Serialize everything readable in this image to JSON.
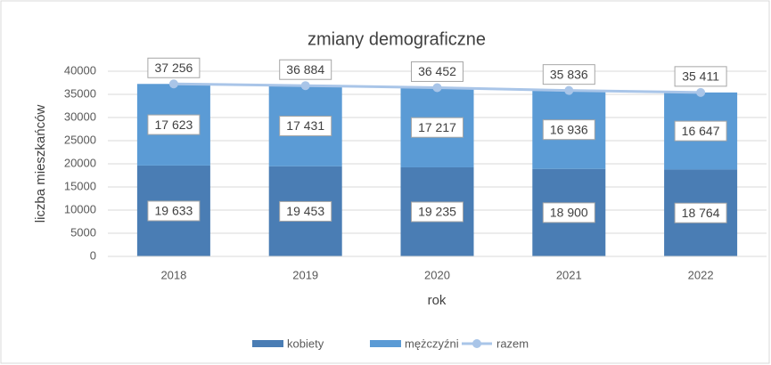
{
  "chart_data": {
    "type": "bar",
    "stacked": true,
    "title": "zmiany demograficzne",
    "x_label": "rok",
    "y_label": "liczba mieszkańców",
    "categories": [
      "2018",
      "2019",
      "2020",
      "2021",
      "2022"
    ],
    "series": [
      {
        "name": "kobiety",
        "color": "#4a7db4",
        "values": [
          19633,
          19453,
          19235,
          18900,
          18764
        ],
        "value_labels": [
          "19 633",
          "19 453",
          "19 235",
          "18 900",
          "18 764"
        ]
      },
      {
        "name": "mężczyźni",
        "color": "#5b9bd5",
        "values": [
          17623,
          17431,
          17217,
          16936,
          16647
        ],
        "value_labels": [
          "17 623",
          "17 431",
          "17 217",
          "16 936",
          "16 647"
        ]
      },
      {
        "name": "razem",
        "type": "line",
        "color": "#a9c5e8",
        "values": [
          37256,
          36884,
          36452,
          35836,
          35411
        ],
        "value_labels": [
          "37 256",
          "36 884",
          "36 452",
          "35 836",
          "35 411"
        ]
      }
    ],
    "ylim": [
      0,
      40000
    ],
    "yticks": [
      0,
      5000,
      10000,
      15000,
      20000,
      25000,
      30000,
      35000,
      40000
    ],
    "grid": true,
    "legend": "bottom"
  }
}
